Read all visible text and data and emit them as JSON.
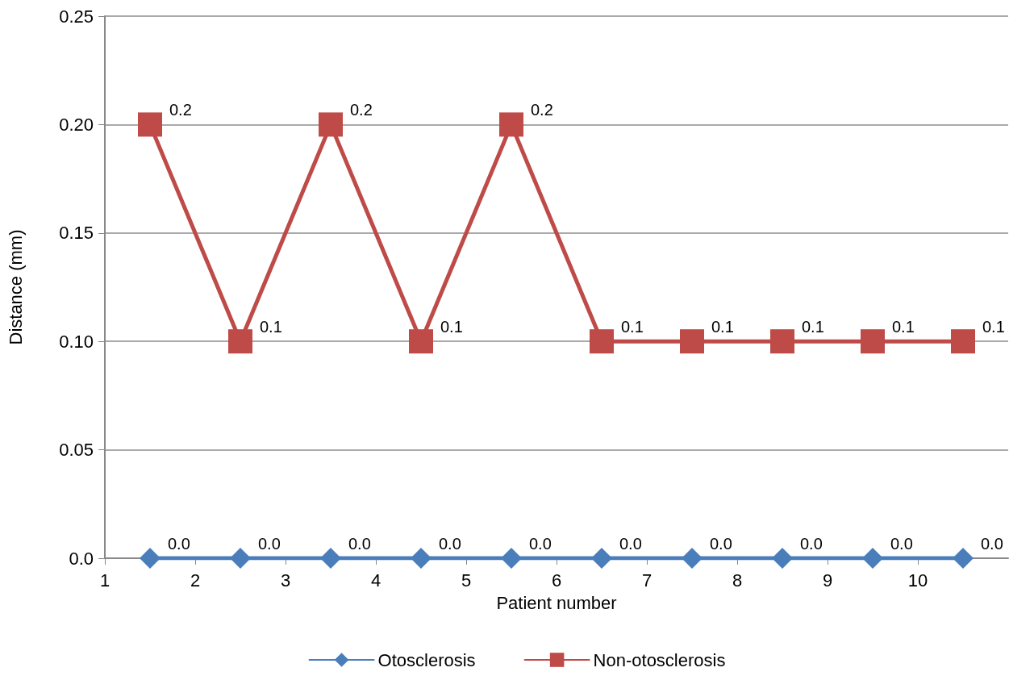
{
  "chart_data": {
    "type": "line",
    "xlabel": "Patient number",
    "ylabel": "Distance (mm)",
    "x": [
      1.5,
      2.5,
      3.5,
      4.5,
      5.5,
      6.5,
      7.5,
      8.5,
      9.5,
      10.5
    ],
    "xlim": [
      1,
      11
    ],
    "xticks": [
      1,
      2,
      3,
      4,
      5,
      6,
      7,
      8,
      9,
      10
    ],
    "ylim": [
      0,
      0.25
    ],
    "yticks": [
      {
        "value": 0,
        "label": "0.0"
      },
      0.05,
      {
        "value": 0.1,
        "label": "0.10"
      },
      0.15,
      {
        "value": 0.2,
        "label": "0.20"
      },
      0.25
    ],
    "grid": "y",
    "legend": "bottom",
    "line_style": "solid",
    "series": [
      {
        "name": "Otosclerosis",
        "color": "#4a7ebb",
        "marker": "diamond",
        "values": [
          0,
          0,
          0,
          0,
          0,
          0,
          0,
          0,
          0,
          0
        ],
        "value_labels": [
          "0.0",
          "0.0",
          "0.0",
          "0.0",
          "0.0",
          "0.0",
          "0.0",
          "0.0",
          "0.0",
          "0.0"
        ]
      },
      {
        "name": "Non-otosclerosis",
        "color": "#be4b48",
        "marker": "square",
        "values": [
          0.2,
          0.1,
          0.2,
          0.1,
          0.2,
          0.1,
          0.1,
          0.1,
          0.1,
          0.1
        ],
        "value_labels": [
          "0.2",
          "0.1",
          "0.2",
          "0.1",
          "0.2",
          "0.1",
          "0.1",
          "0.1",
          "0.1",
          "0.1"
        ]
      }
    ]
  }
}
